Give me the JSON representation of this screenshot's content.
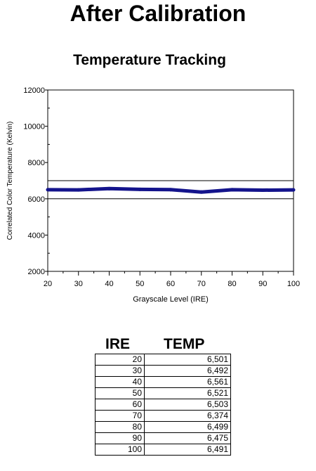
{
  "page_title": "After Calibration",
  "chart_data": {
    "type": "line",
    "title": "Temperature Tracking",
    "xlabel": "Grayscale Level (IRE)",
    "ylabel": "Correlated Color Temperature (Kelvin)",
    "xlim": [
      20,
      100
    ],
    "ylim": [
      2000,
      12000
    ],
    "xticks": [
      20,
      30,
      40,
      50,
      60,
      70,
      80,
      90,
      100
    ],
    "yticks": [
      2000,
      4000,
      6000,
      8000,
      10000,
      12000
    ],
    "grid": false,
    "reference_lines": [
      6000,
      7000
    ],
    "series": [
      {
        "x": [
          20,
          30,
          40,
          50,
          60,
          70,
          80,
          90,
          100
        ],
        "values": [
          6501,
          6492,
          6561,
          6521,
          6503,
          6374,
          6499,
          6475,
          6491
        ],
        "color": "#14148c"
      }
    ]
  },
  "table": {
    "headers": {
      "ire": "IRE",
      "temp": "TEMP"
    },
    "rows": [
      {
        "ire": "20",
        "temp": "6,501"
      },
      {
        "ire": "30",
        "temp": "6,492"
      },
      {
        "ire": "40",
        "temp": "6,561"
      },
      {
        "ire": "50",
        "temp": "6,521"
      },
      {
        "ire": "60",
        "temp": "6,503"
      },
      {
        "ire": "70",
        "temp": "6,374"
      },
      {
        "ire": "80",
        "temp": "6,499"
      },
      {
        "ire": "90",
        "temp": "6,475"
      },
      {
        "ire": "100",
        "temp": "6,491"
      }
    ]
  }
}
